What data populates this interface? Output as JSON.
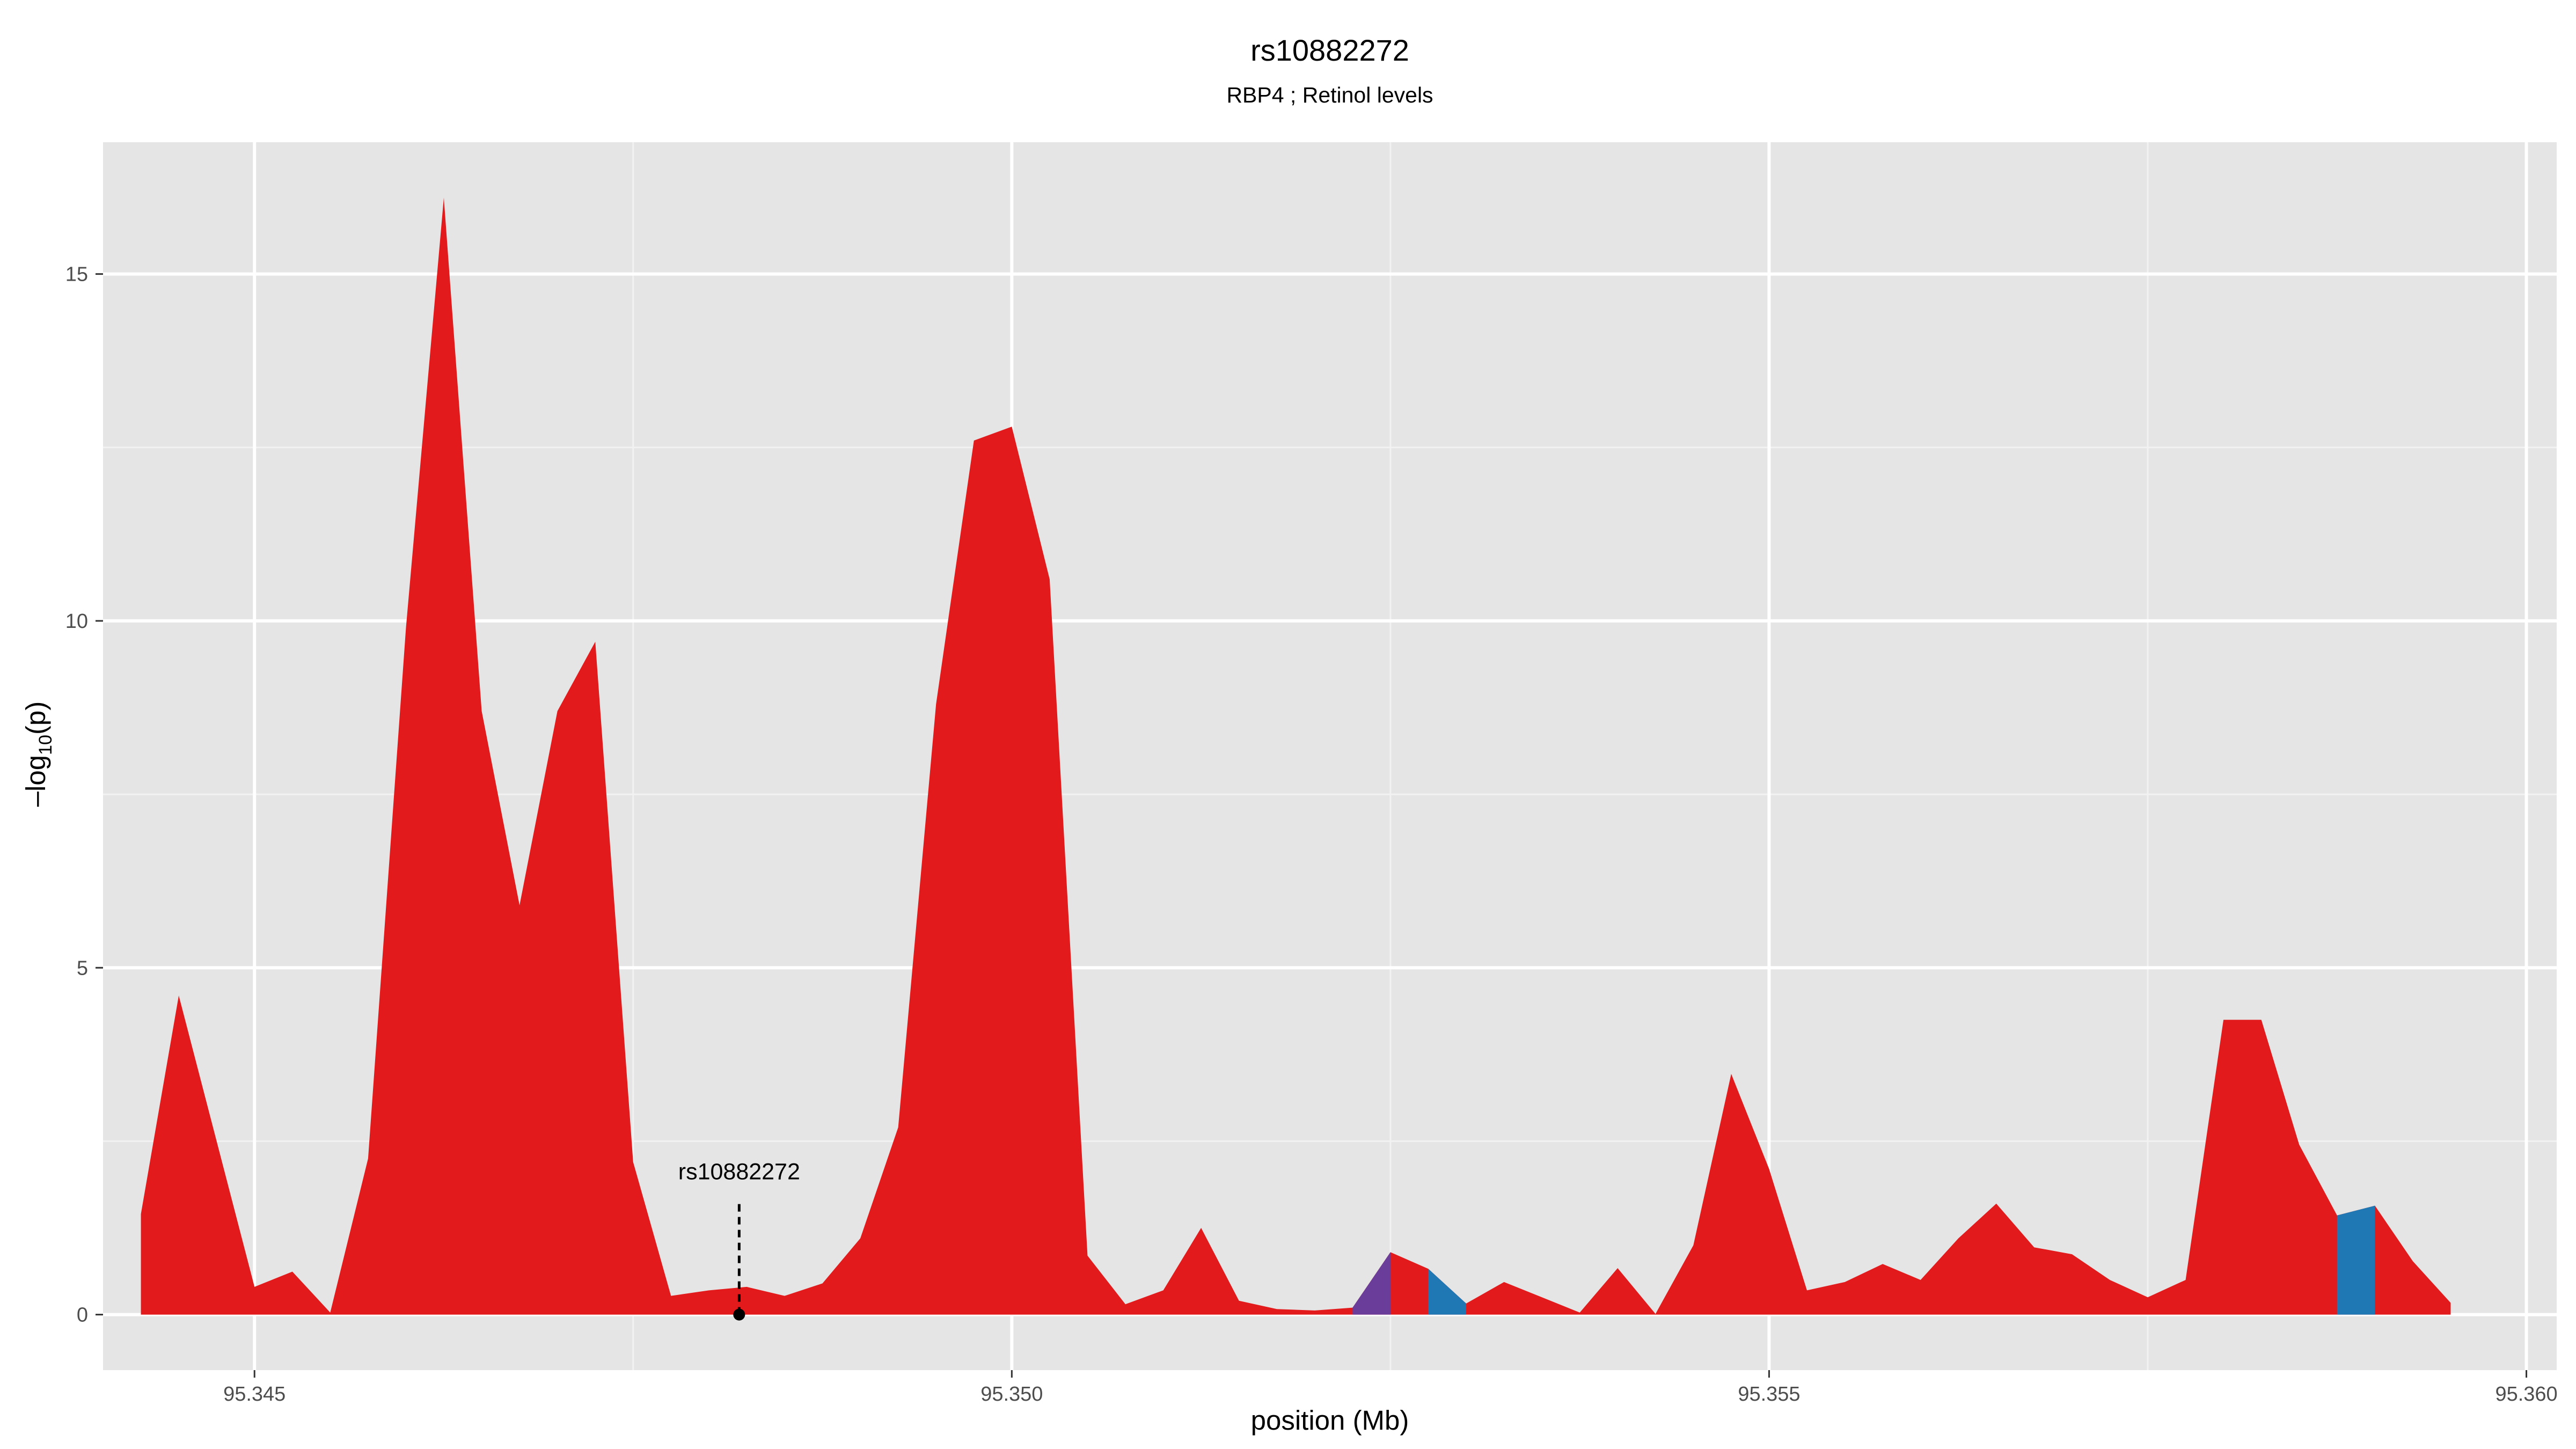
{
  "chart_data": {
    "type": "area",
    "title": "rs10882272",
    "subtitle": "RBP4 ; Retinol levels",
    "xlabel": "position (Mb)",
    "ylabel_prefix": "–log",
    "ylabel_sub": "10",
    "ylabel_suffix": "(p)",
    "xlim": [
      95.344,
      95.3602
    ],
    "ylim": [
      -0.8,
      16.9
    ],
    "x_ticks": [
      95.345,
      95.35,
      95.355,
      95.36
    ],
    "x_tick_labels": [
      "95.345",
      "95.350",
      "95.355",
      "95.360"
    ],
    "y_ticks": [
      0,
      5,
      10,
      15
    ],
    "y_tick_labels": [
      "0",
      "5",
      "10",
      "15"
    ],
    "grid": true,
    "colors": {
      "panel": "#E5E5E5",
      "grid_major": "#FFFFFF",
      "grid_minor": "#F2F2F2",
      "area_red": "#E31A1C",
      "area_purple": "#6A3D9A",
      "area_blue": "#1F78B4",
      "tick_text": "#4D4D4D"
    },
    "x": [
      95.34425,
      95.3445,
      95.34475,
      95.345,
      95.34525,
      95.3455,
      95.34575,
      95.346,
      95.34625,
      95.3465,
      95.34675,
      95.347,
      95.34725,
      95.3475,
      95.34775,
      95.348,
      95.34825,
      95.3485,
      95.34875,
      95.349,
      95.34925,
      95.3495,
      95.34975,
      95.35,
      95.35025,
      95.3505,
      95.35075,
      95.351,
      95.35125,
      95.3515,
      95.35175,
      95.352,
      95.35225,
      95.3525,
      95.35275,
      95.353,
      95.35325,
      95.3535,
      95.35375,
      95.354,
      95.35425,
      95.3545,
      95.35475,
      95.355,
      95.35525,
      95.3555,
      95.35575,
      95.356,
      95.35625,
      95.3565,
      95.35675,
      95.357,
      95.35725,
      95.3575,
      95.35775,
      95.358,
      95.35825,
      95.3585,
      95.35875,
      95.359,
      95.35925,
      95.3595
    ],
    "y": [
      1.45,
      4.6,
      2.5,
      0.4,
      0.62,
      0.03,
      2.25,
      9.9,
      16.1,
      8.7,
      5.9,
      8.7,
      9.7,
      2.2,
      0.27,
      0.35,
      0.4,
      0.27,
      0.45,
      1.1,
      2.7,
      8.8,
      12.6,
      12.8,
      10.6,
      0.85,
      0.15,
      0.35,
      1.25,
      0.2,
      0.08,
      0.06,
      0.1,
      0.9,
      0.66,
      0.16,
      0.47,
      0.25,
      0.03,
      0.67,
      0.01,
      1.0,
      3.47,
      2.1,
      0.35,
      0.47,
      0.73,
      0.5,
      1.1,
      1.6,
      0.97,
      0.87,
      0.5,
      0.25,
      0.5,
      4.25,
      4.25,
      2.45,
      1.43,
      1.57,
      0.77,
      0.17
    ],
    "colored_segments": [
      {
        "from_index": 32,
        "to_index": 33,
        "color": "area_purple"
      },
      {
        "from_index": 34,
        "to_index": 35,
        "color": "area_blue"
      },
      {
        "from_index": 58,
        "to_index": 59,
        "color": "area_blue"
      }
    ],
    "annotations": [
      {
        "label": "rs10882272",
        "x": 95.3482,
        "y": 0
      }
    ]
  }
}
